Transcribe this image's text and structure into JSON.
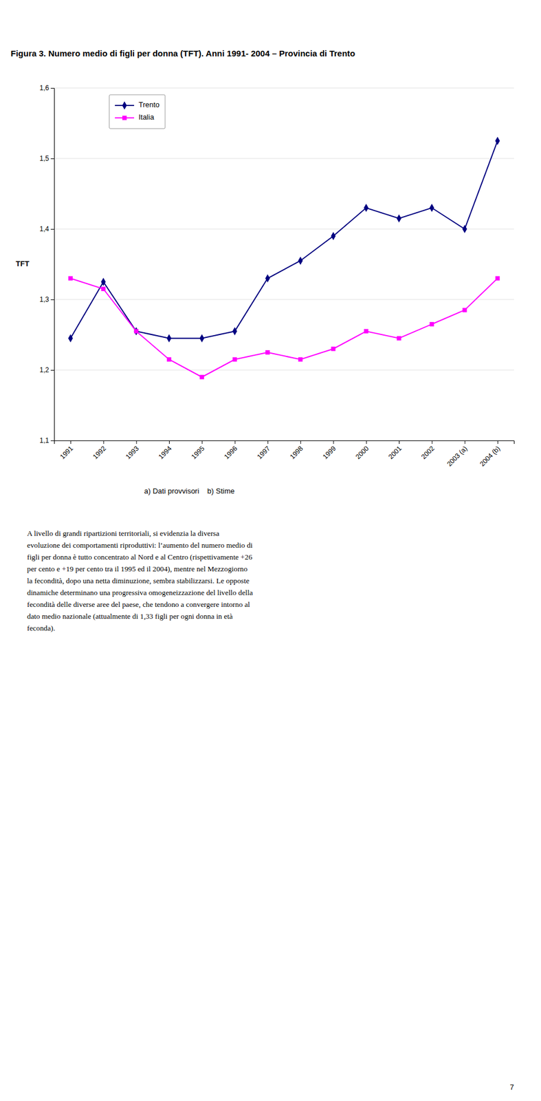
{
  "chart_data": {
    "type": "line",
    "title": "Figura 3. Numero medio di figli per donna (TFT). Anni 1991- 2004 –  Provincia di Trento",
    "ylabel": "TFT",
    "annotations": [
      "a) Dati provvisori    b) Stime"
    ],
    "categories": [
      "1991",
      "1992",
      "1993",
      "1994",
      "1995",
      "1996",
      "1997",
      "1998",
      "1999",
      "2000",
      "2001",
      "2002",
      "2003 (a)",
      "2004 (b)"
    ],
    "series": [
      {
        "name": "Trento",
        "color": "#000080",
        "marker": "diamond",
        "line_style": "solid",
        "values": [
          1.245,
          1.325,
          1.255,
          1.245,
          1.245,
          1.255,
          1.33,
          1.355,
          1.39,
          1.43,
          1.415,
          1.43,
          1.4,
          1.525
        ]
      },
      {
        "name": "Italia",
        "color": "#FF00FF",
        "marker": "square",
        "line_style": "solid",
        "values": [
          1.33,
          1.315,
          1.255,
          1.215,
          1.19,
          1.215,
          1.225,
          1.215,
          1.23,
          1.255,
          1.245,
          1.265,
          1.285,
          1.33
        ]
      }
    ],
    "ylim": [
      1.1,
      1.6
    ],
    "yticks": [
      {
        "value": 1.1,
        "label": "1,1"
      },
      {
        "value": 1.2,
        "label": "1,2"
      },
      {
        "value": 1.3,
        "label": "1,3"
      },
      {
        "value": 1.4,
        "label": "1,4"
      },
      {
        "value": 1.5,
        "label": "1,5"
      },
      {
        "value": 1.6,
        "label": "1,6"
      }
    ],
    "grid": true,
    "legend": "upper left"
  },
  "body_lines": [
    "A livello di grandi ripartizioni territoriali, si evidenzia la diversa",
    "evoluzione dei comportamenti riproduttivi: l’aumento del numero medio di",
    "figli per donna è tutto concentrato al Nord e al Centro (rispettivamente +26",
    "per cento e +19 per cento tra il 1995 ed il 2004), mentre nel Mezzogiorno",
    "la fecondità, dopo una netta diminuzione, sembra stabilizzarsi. Le opposte",
    "dinamiche determinano una progressiva omogeneizzazione del livello della",
    "fecondità delle diverse aree del paese, che tendono a convergere intorno al",
    "dato medio nazionale (attualmente di 1,33 figli per ogni donna in età",
    "feconda)."
  ],
  "page_number": "7"
}
